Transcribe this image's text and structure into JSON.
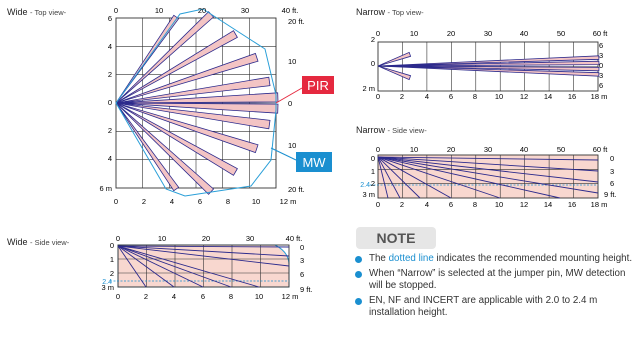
{
  "titles": {
    "wide_top": {
      "main": "Wide",
      "sub": "- Top view-"
    },
    "wide_side": {
      "main": "Wide",
      "sub": "- Side view-"
    },
    "narrow_top": {
      "main": "Narrow",
      "sub": "- Top view-"
    },
    "narrow_side": {
      "main": "Narrow",
      "sub": "- Side view-"
    }
  },
  "wide_top": {
    "top_ticks": [
      "0",
      "10",
      "20",
      "30",
      "40 ft."
    ],
    "bottom_ticks": [
      "0",
      "2",
      "4",
      "6",
      "8",
      "10",
      "12 m"
    ],
    "left_ticks": [
      "6",
      "4",
      "2",
      "0",
      "2",
      "4",
      "6 m"
    ],
    "right_ticks": [
      "20 ft.",
      "10",
      "0",
      "10",
      "20 ft."
    ],
    "pir_label": "PIR",
    "mw_label": "MW"
  },
  "wide_side": {
    "top_ticks": [
      "0",
      "10",
      "20",
      "30",
      "40 ft."
    ],
    "bottom_ticks": [
      "0",
      "2",
      "4",
      "6",
      "8",
      "10",
      "12 m"
    ],
    "left_ticks": [
      "0",
      "1",
      "2",
      "3 m"
    ],
    "right_ticks": [
      "0",
      "3",
      "6",
      "9 ft."
    ],
    "mount_height": "2.4"
  },
  "narrow_top": {
    "top_ticks": [
      "0",
      "10",
      "20",
      "30",
      "40",
      "50",
      "60 ft"
    ],
    "bottom_ticks": [
      "0",
      "2",
      "4",
      "6",
      "8",
      "10",
      "12",
      "14",
      "16",
      "18 m"
    ],
    "left_ticks": [
      "2",
      "0",
      "2 m"
    ],
    "right_ticks": [
      "6",
      "3",
      "0",
      "3",
      "6"
    ]
  },
  "narrow_side": {
    "top_ticks": [
      "0",
      "10",
      "20",
      "30",
      "40",
      "50",
      "60 ft"
    ],
    "bottom_ticks": [
      "0",
      "2",
      "4",
      "6",
      "8",
      "10",
      "12",
      "14",
      "16",
      "18 m"
    ],
    "left_ticks": [
      "0",
      "1",
      "2",
      "3 m"
    ],
    "right_ticks": [
      "0",
      "3",
      "6",
      "9 ft."
    ],
    "mount_height": "2.4"
  },
  "note": {
    "heading": "NOTE",
    "item1_pre": "The ",
    "item1_link": "dotted line",
    "item1_post": " indicates the recommended mounting height.",
    "item2": "When “Narrow” is selected at the jumper pin, MW detection will be stopped.",
    "item3": "EN, NF and INCERT are applicable with 2.0 to 2.4 m installation height."
  },
  "colors": {
    "grid": "#333333",
    "beam": "#2c2a8c",
    "beam_fill": "#f3c4c4",
    "zone_fill": "#f8d7cf",
    "mw_outline": "#2a9fd8",
    "pir_badge": "#e5293f",
    "mw_badge": "#1a8fd0",
    "accent": "#1a8fd0"
  }
}
